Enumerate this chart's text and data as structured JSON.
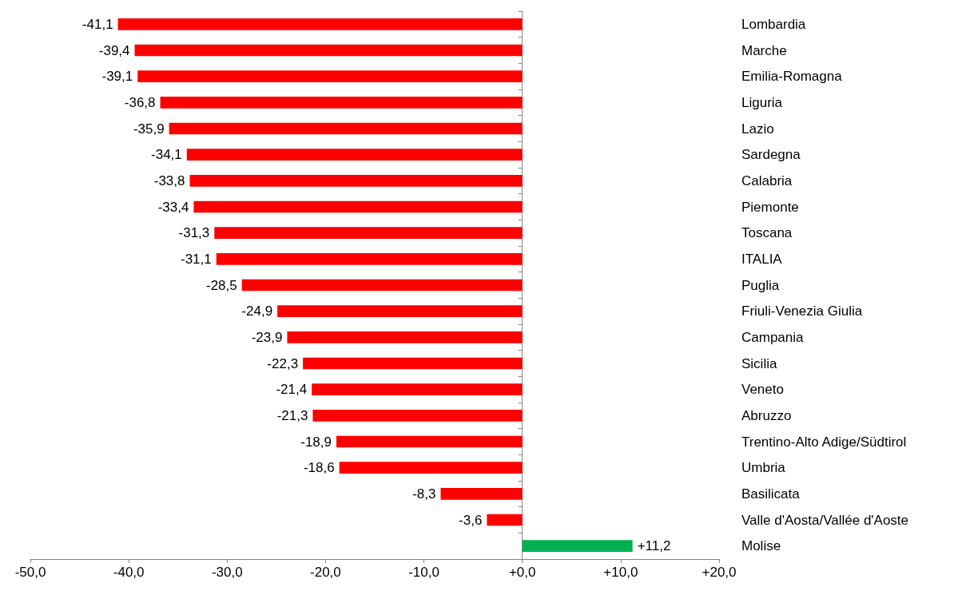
{
  "chart_data": {
    "type": "bar",
    "orientation": "horizontal",
    "categories": [
      "Lombardia",
      "Marche",
      "Emilia-Romagna",
      "Liguria",
      "Lazio",
      "Sardegna",
      "Calabria",
      "Piemonte",
      "Toscana",
      "ITALIA",
      "Puglia",
      "Friuli-Venezia Giulia",
      "Campania",
      "Sicilia",
      "Veneto",
      "Abruzzo",
      "Trentino-Alto Adige/Südtirol",
      "Umbria",
      "Basilicata",
      "Valle d'Aosta/Vallée d'Aoste",
      "Molise"
    ],
    "values": [
      -41.1,
      -39.4,
      -39.1,
      -36.8,
      -35.9,
      -34.1,
      -33.8,
      -33.4,
      -31.3,
      -31.1,
      -28.5,
      -24.9,
      -23.9,
      -22.3,
      -21.4,
      -21.3,
      -18.9,
      -18.6,
      -8.3,
      -3.6,
      11.2
    ],
    "colors": [
      "#ff0000",
      "#ff0000",
      "#ff0000",
      "#ff0000",
      "#ff0000",
      "#ff0000",
      "#ff0000",
      "#ff0000",
      "#ff0000",
      "#ff0000",
      "#ff0000",
      "#ff0000",
      "#ff0000",
      "#ff0000",
      "#ff0000",
      "#ff0000",
      "#ff0000",
      "#ff0000",
      "#ff0000",
      "#ff0000",
      "#00b050"
    ],
    "value_labels": [
      "-41,1",
      "-39,4",
      "-39,1",
      "-36,8",
      "-35,9",
      "-34,1",
      "-33,8",
      "-33,4",
      "-31,3",
      "-31,1",
      "-28,5",
      "-24,9",
      "-23,9",
      "-22,3",
      "-21,4",
      "-21,3",
      "-18,9",
      "-18,6",
      "-8,3",
      "-3,6",
      "+11,2"
    ],
    "xlim": [
      -50,
      20
    ],
    "xticks": [
      {
        "value": -50,
        "label": "-50,0"
      },
      {
        "value": -40,
        "label": "-40,0"
      },
      {
        "value": -30,
        "label": "-30,0"
      },
      {
        "value": -20,
        "label": "-20,0"
      },
      {
        "value": -10,
        "label": "-10,0"
      },
      {
        "value": 0,
        "label": "+0,0"
      },
      {
        "value": 10,
        "label": "+10,0"
      },
      {
        "value": 20,
        "label": "+20,0"
      }
    ]
  }
}
